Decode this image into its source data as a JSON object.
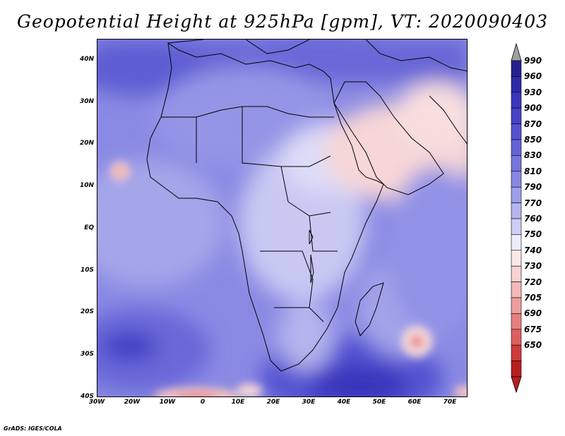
{
  "title": "Geopotential Height at 925hPa [gpm], VT: 2020090403",
  "footer": "GrADS: IGES/COLA",
  "map": {
    "lon_range": [
      -30,
      75
    ],
    "lat_range": [
      -40,
      45
    ],
    "lat_ticks": [
      "40N",
      "30N",
      "20N",
      "10N",
      "EQ",
      "10S",
      "20S",
      "30S",
      "40S"
    ],
    "lat_values": [
      40,
      30,
      20,
      10,
      0,
      -10,
      -20,
      -30,
      -40
    ],
    "lon_ticks": [
      "30W",
      "20W",
      "10W",
      "0",
      "10E",
      "20E",
      "30E",
      "40E",
      "50E",
      "60E",
      "70E"
    ],
    "lon_values": [
      -30,
      -20,
      -10,
      0,
      10,
      20,
      30,
      40,
      50,
      60,
      70
    ]
  },
  "colorbar": {
    "labels": [
      "990",
      "960",
      "930",
      "900",
      "870",
      "850",
      "830",
      "810",
      "790",
      "770",
      "760",
      "750",
      "740",
      "730",
      "720",
      "705",
      "690",
      "675",
      "650"
    ],
    "colors": [
      "#25208f",
      "#2e2aa8",
      "#3a36bd",
      "#4642c9",
      "#5552d1",
      "#6563d8",
      "#7675de",
      "#8888e4",
      "#9d9de9",
      "#b4b4ef",
      "#cdcdf5",
      "#ececfb",
      "#fbe9e9",
      "#f8d2d2",
      "#f3b8b8",
      "#ee9d9d",
      "#e67f7f",
      "#dd5f5f",
      "#cf3a3a",
      "#b81e1e"
    ],
    "top_arrow_color": "#a0a0a0",
    "bottom_arrow_color": "#b81e1e"
  }
}
